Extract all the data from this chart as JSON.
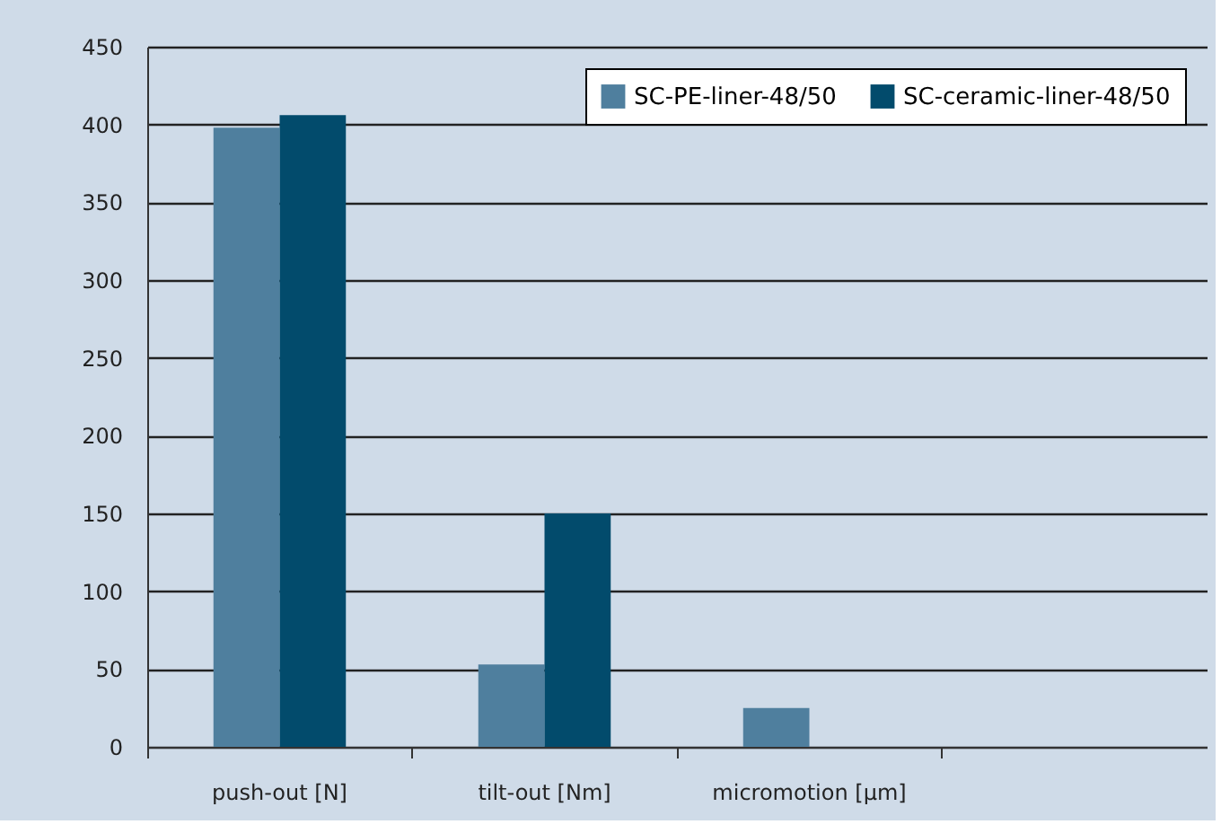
{
  "chart_data": {
    "type": "bar",
    "categories": [
      "push-out [N]",
      "tilt-out [Nm]",
      "micromotion [µm]",
      null
    ],
    "series": [
      {
        "name": "SC-PE-liner-48/50",
        "color": "#4f7f9e",
        "values": [
          398,
          53,
          25,
          null
        ]
      },
      {
        "name": "SC-ceramic-liner-48/50",
        "color": "#024b6c",
        "values": [
          406,
          150,
          null,
          null
        ]
      }
    ],
    "ylim": [
      0,
      450
    ],
    "yticks": [
      0,
      50,
      100,
      150,
      200,
      250,
      300,
      350,
      400,
      450
    ],
    "grid": "y",
    "legend": "top right"
  }
}
